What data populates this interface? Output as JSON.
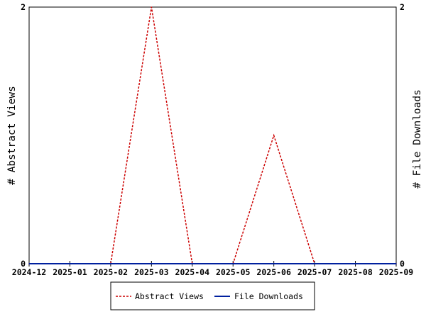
{
  "chart_data": {
    "type": "line",
    "x": [
      "2024-12",
      "2025-01",
      "2025-02",
      "2025-03",
      "2025-04",
      "2025-05",
      "2025-06",
      "2025-07",
      "2025-08",
      "2025-09"
    ],
    "series": [
      {
        "name": "Abstract Views",
        "axis": "left",
        "color": "#cc0000",
        "style": "dashed",
        "values": [
          0,
          0,
          0,
          2,
          0,
          0,
          1,
          0,
          0,
          0
        ]
      },
      {
        "name": "File Downloads",
        "axis": "right",
        "color": "#00209f",
        "style": "solid",
        "values": [
          0,
          0,
          0,
          0,
          0,
          0,
          0,
          0,
          0,
          0
        ]
      }
    ],
    "ylabel_left": "# Abstract Views",
    "ylabel_right": "# File Downloads",
    "ylim_left": [
      0,
      2
    ],
    "ylim_right": [
      0,
      2
    ],
    "left_ticks": [
      "0",
      "2"
    ],
    "right_ticks": [
      "0",
      "2"
    ],
    "grid": false,
    "legend_position": "bottom"
  }
}
